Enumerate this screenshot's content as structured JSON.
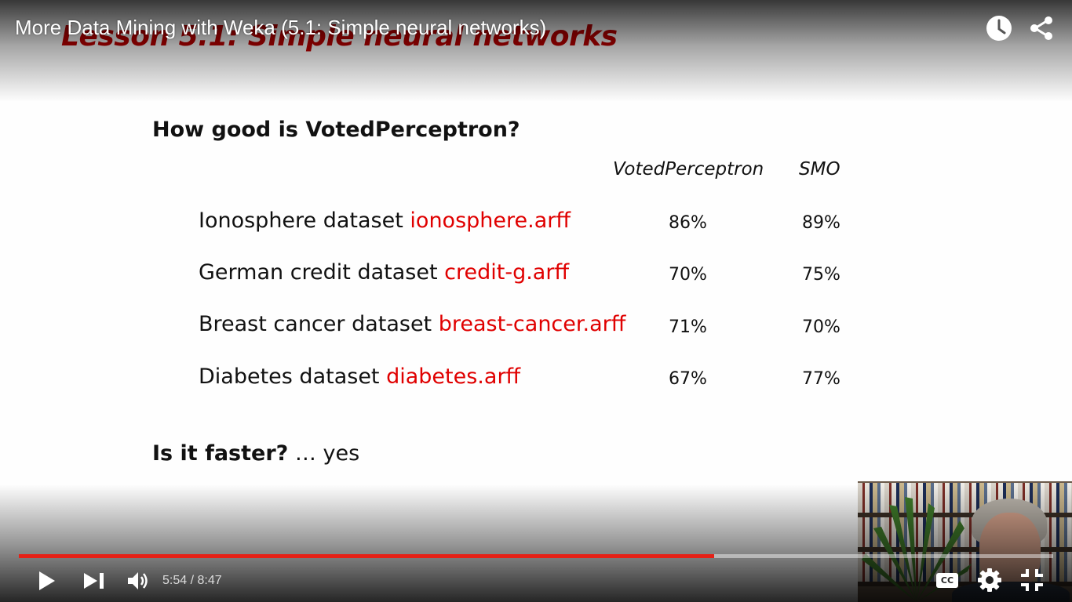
{
  "player": {
    "video_title": "More Data Mining with Weka (5.1: Simple neural networks)",
    "current_time": "5:54",
    "duration": "8:47",
    "time_display": "5:54 / 8:47",
    "progress_fraction": 0.672,
    "cc_label": "CC",
    "colors": {
      "progress": "#e62117",
      "title": "#ffffff"
    },
    "icons": {
      "watch_later": "clock-icon",
      "share": "share-icon",
      "play": "play-icon",
      "next": "next-icon",
      "volume": "volume-icon",
      "settings": "gear-icon",
      "fullscreen": "exit-fullscreen-icon"
    }
  },
  "slide": {
    "lesson_title": "Lesson 5.1: Simple neural networks",
    "question1": "How good is VotedPerceptron?",
    "column_headers": [
      "VotedPerceptron",
      "SMO"
    ],
    "rows": [
      {
        "label": "Ionosphere dataset ",
        "file": "ionosphere.arff",
        "voted_perceptron": "86%",
        "smo": "89%"
      },
      {
        "label": "German credit dataset ",
        "file": "credit-g.arff",
        "voted_perceptron": "70%",
        "smo": "75%"
      },
      {
        "label": "Breast cancer dataset ",
        "file": "breast-cancer.arff",
        "voted_perceptron": "71%",
        "smo": "70%"
      },
      {
        "label": "Diabetes dataset ",
        "file": "diabetes.arff",
        "voted_perceptron": "67%",
        "smo": "77%"
      }
    ],
    "question2_bold": "Is it faster?",
    "question2_rest": " … yes",
    "colors": {
      "title": "#c00000",
      "filename": "#e00000",
      "text": "#111111"
    }
  }
}
